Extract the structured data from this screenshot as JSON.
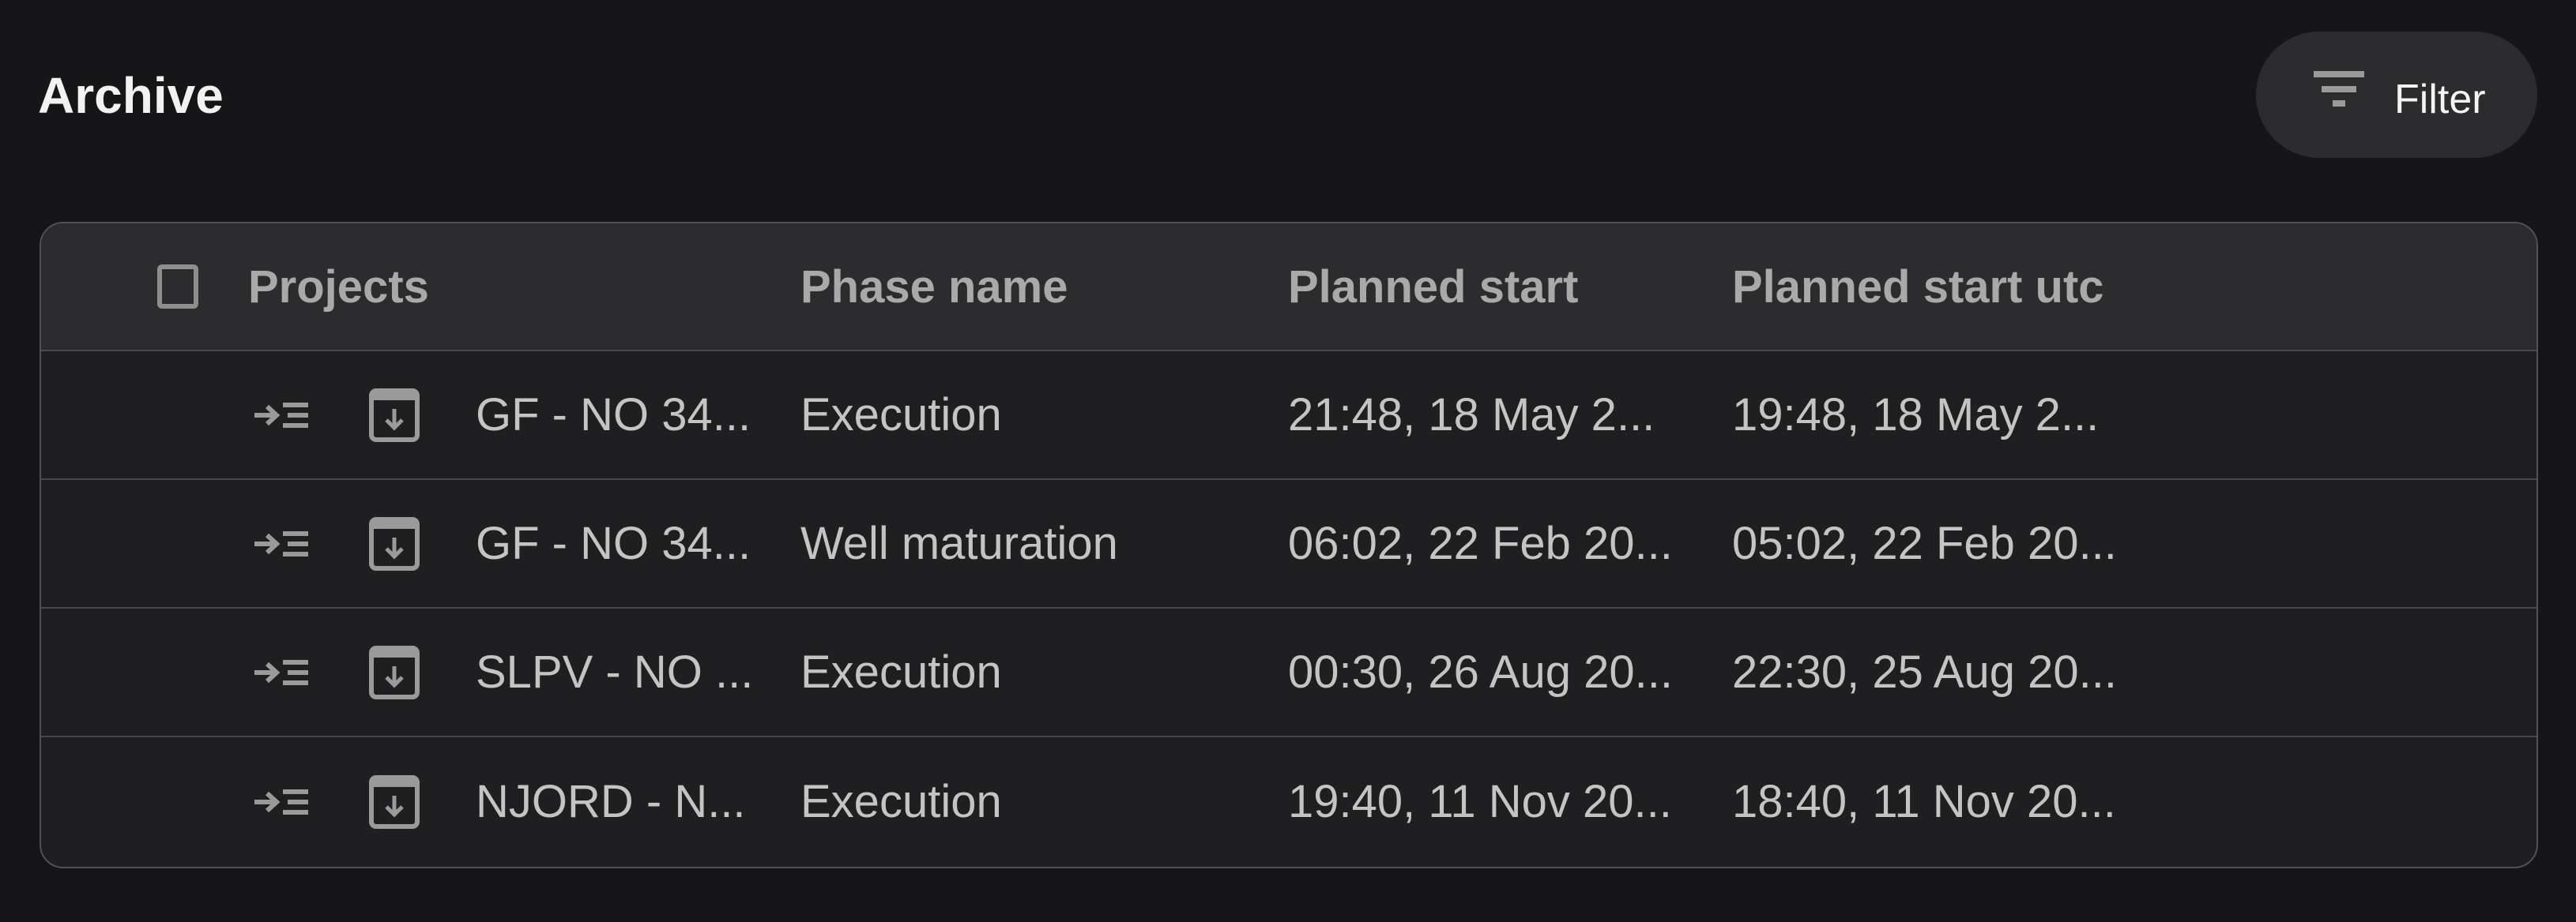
{
  "page": {
    "title": "Archive"
  },
  "toolbar": {
    "filter_label": "Filter",
    "filter_icon": "filter-icon"
  },
  "table": {
    "columns": [
      "Projects",
      "Phase name",
      "Planned start",
      "Planned start utc"
    ],
    "rows": [
      {
        "project": "GF - NO 34...",
        "phase": "Execution",
        "planned_start": "21:48, 18 May 2...",
        "planned_start_utc": "19:48, 18 May 2..."
      },
      {
        "project": "GF - NO 34...",
        "phase": "Well maturation",
        "planned_start": "06:02, 22 Feb 20...",
        "planned_start_utc": "05:02, 22 Feb 20..."
      },
      {
        "project": "SLPV - NO ...",
        "phase": "Execution",
        "planned_start": "00:30, 26 Aug 20...",
        "planned_start_utc": "22:30, 25 Aug 20..."
      },
      {
        "project": "NJORD - N...",
        "phase": "Execution",
        "planned_start": "19:40, 11 Nov 20...",
        "planned_start_utc": "18:40, 11 Nov 20..."
      }
    ]
  },
  "colors": {
    "background": "#161618",
    "header": "#2c2c2e",
    "row": "#1f1f21",
    "border": "#515153"
  }
}
